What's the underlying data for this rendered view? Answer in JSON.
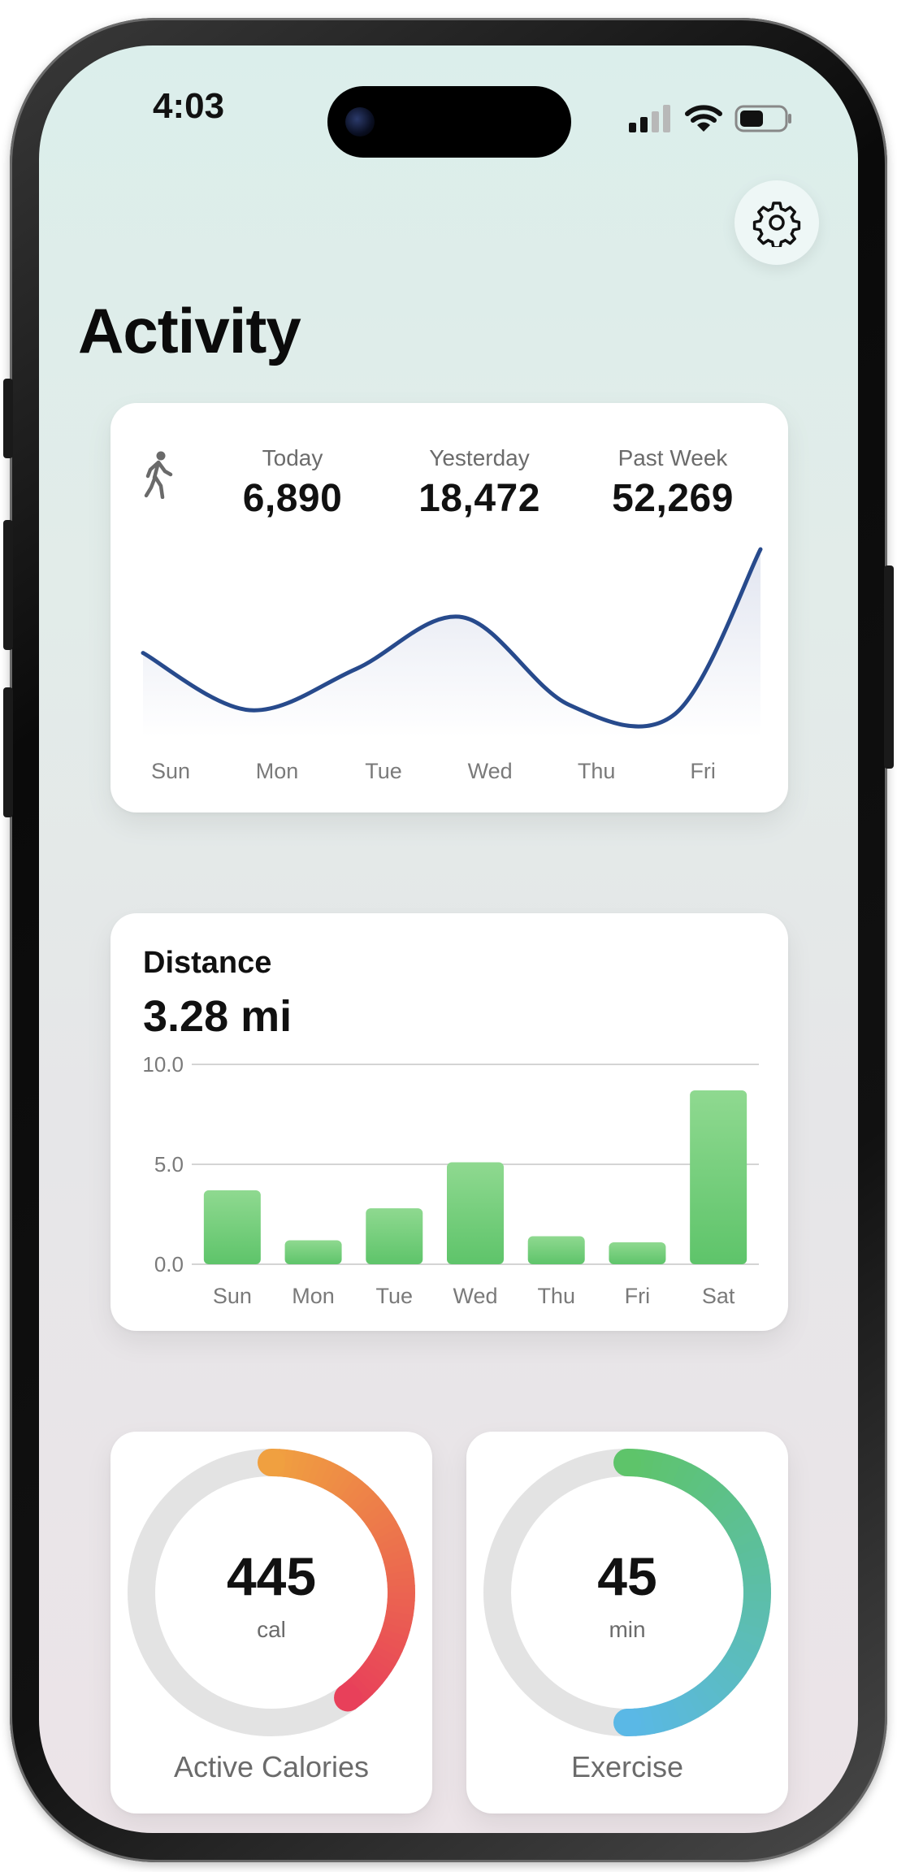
{
  "status_bar": {
    "time": "4:03"
  },
  "header": {
    "title": "Activity",
    "settings_icon": "gear-icon"
  },
  "steps_card": {
    "icon": "walking-person-icon",
    "stats": [
      {
        "label": "Today",
        "value": "6,890"
      },
      {
        "label": "Yesterday",
        "value": "18,472"
      },
      {
        "label": "Past Week",
        "value": "52,269"
      }
    ],
    "chart_data": {
      "type": "area",
      "categories": [
        "Sun",
        "Mon",
        "Tue",
        "Wed",
        "Thu",
        "Fri"
      ],
      "x": [
        0,
        1,
        2,
        3,
        4,
        5,
        5.8
      ],
      "values": [
        0.42,
        0.1,
        0.33,
        0.62,
        0.13,
        0.08,
        1.0
      ],
      "y_axis_shown": false,
      "line_color": "#274a8c",
      "fill_color": "#dfe3ef"
    }
  },
  "distance_card": {
    "title": "Distance",
    "value": "3.28 mi",
    "chart_data": {
      "type": "bar",
      "categories": [
        "Sun",
        "Mon",
        "Tue",
        "Wed",
        "Thu",
        "Fri",
        "Sat"
      ],
      "values": [
        3.7,
        1.2,
        2.8,
        5.1,
        1.4,
        1.1,
        8.7
      ],
      "ylim": [
        0,
        10
      ],
      "yticks": [
        "0.0",
        "5.0",
        "10.0"
      ],
      "grid": true,
      "bar_color": "#5ec46a"
    }
  },
  "rings": [
    {
      "id": "calories",
      "value": "445",
      "unit": "cal",
      "label": "Active Calories",
      "progress": 0.4,
      "start_color": "#f0a040",
      "end_color": "#e8405a"
    },
    {
      "id": "exercise",
      "value": "45",
      "unit": "min",
      "label": "Exercise",
      "progress": 0.5,
      "start_color": "#5ec46a",
      "end_color": "#5ab8e6"
    }
  ]
}
